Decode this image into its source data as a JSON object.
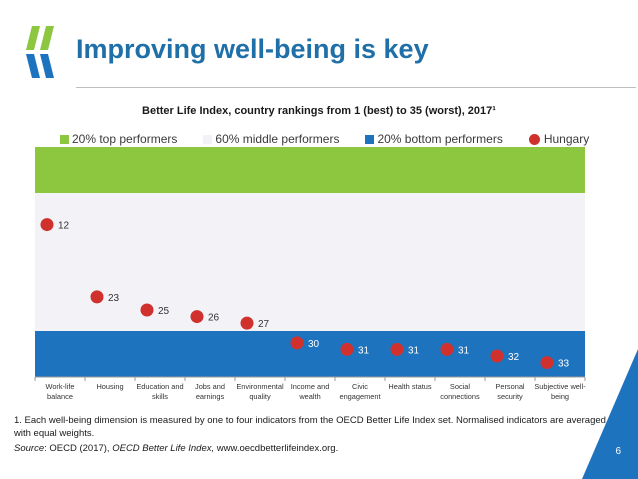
{
  "slide": {
    "title": "Improving well-being is key",
    "page_number": "6"
  },
  "colors": {
    "top": "#8dc63f",
    "middle": "#f2f2f7",
    "bottom": "#1e73be",
    "hungary": "#d0312d",
    "title": "#1f6fa9"
  },
  "chart_data": {
    "type": "scatter",
    "title": "Better Life Index, country rankings from 1 (best) to 35 (worst), 2017¹",
    "legend": [
      {
        "label": "20% top performers",
        "color": "#8dc63f",
        "marker": "square"
      },
      {
        "label": "60% middle performers",
        "color": "#f2f2f7",
        "marker": "square"
      },
      {
        "label": "20% bottom performers",
        "color": "#1e73be",
        "marker": "square"
      },
      {
        "label": "Hungary",
        "color": "#d0312d",
        "marker": "circle"
      }
    ],
    "legend_position": "top",
    "y_range": [
      1,
      35
    ],
    "y_inverted": true,
    "bands": [
      {
        "name": "20% top performers",
        "from": 1,
        "to": 7
      },
      {
        "name": "60% middle performers",
        "from": 8,
        "to": 28
      },
      {
        "name": "20% bottom performers",
        "from": 29,
        "to": 35
      }
    ],
    "categories": [
      [
        "Work-life",
        "balance"
      ],
      [
        "Housing"
      ],
      [
        "Education and",
        "skills"
      ],
      [
        "Jobs and",
        "earnings"
      ],
      [
        "Environmental",
        "quality"
      ],
      [
        "Income and",
        "wealth"
      ],
      [
        "Civic",
        "engagement"
      ],
      [
        "Health status"
      ],
      [
        "Social",
        "connections"
      ],
      [
        "Personal",
        "security"
      ],
      [
        "Subjective well-",
        "being"
      ]
    ],
    "series": [
      {
        "name": "Hungary",
        "values": [
          12,
          23,
          25,
          26,
          27,
          30,
          31,
          31,
          31,
          32,
          33
        ]
      }
    ]
  },
  "footnotes": {
    "note": "1. Each well-being dimension is measured by one to four indicators from the OECD Better Life Index set. Normalised indicators are averaged with equal weights.",
    "source_label": "Source",
    "source_text": ":  OECD (2017), ",
    "source_italic": "OECD Better Life Index, ",
    "source_tail": " www.oecdbetterlifeindex.org."
  }
}
